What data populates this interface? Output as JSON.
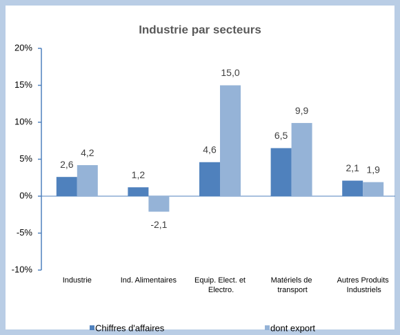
{
  "chart_data": {
    "type": "bar",
    "title": "Industrie par secteurs",
    "categories": [
      "Industrie",
      "Ind. Alimentaires",
      "Equip. Elect. et Electro.",
      "Matériels de transport",
      "Autres Produits Industriels"
    ],
    "series": [
      {
        "name": "Chiffres d'affaires",
        "color": "#4f81bd",
        "values": [
          2.6,
          1.2,
          4.6,
          6.5,
          2.1
        ],
        "value_labels": [
          "2,6",
          "1,2",
          "4,6",
          "6,5",
          "2,1"
        ]
      },
      {
        "name": "dont export",
        "color": "#95b3d7",
        "values": [
          4.2,
          -2.1,
          15.0,
          9.9,
          1.9
        ],
        "value_labels": [
          "4,2",
          "-2,1",
          "15,0",
          "9,9",
          "1,9"
        ]
      }
    ],
    "ylim": [
      -10,
      20
    ],
    "yticks": [
      {
        "value": -10,
        "label": "-10%"
      },
      {
        "value": -5,
        "label": "-5%"
      },
      {
        "value": 0,
        "label": "0%"
      },
      {
        "value": 5,
        "label": "5%"
      },
      {
        "value": 10,
        "label": "10%"
      },
      {
        "value": 15,
        "label": "15%"
      },
      {
        "value": 20,
        "label": "20%"
      }
    ],
    "grid": false,
    "legend": "bottom"
  }
}
